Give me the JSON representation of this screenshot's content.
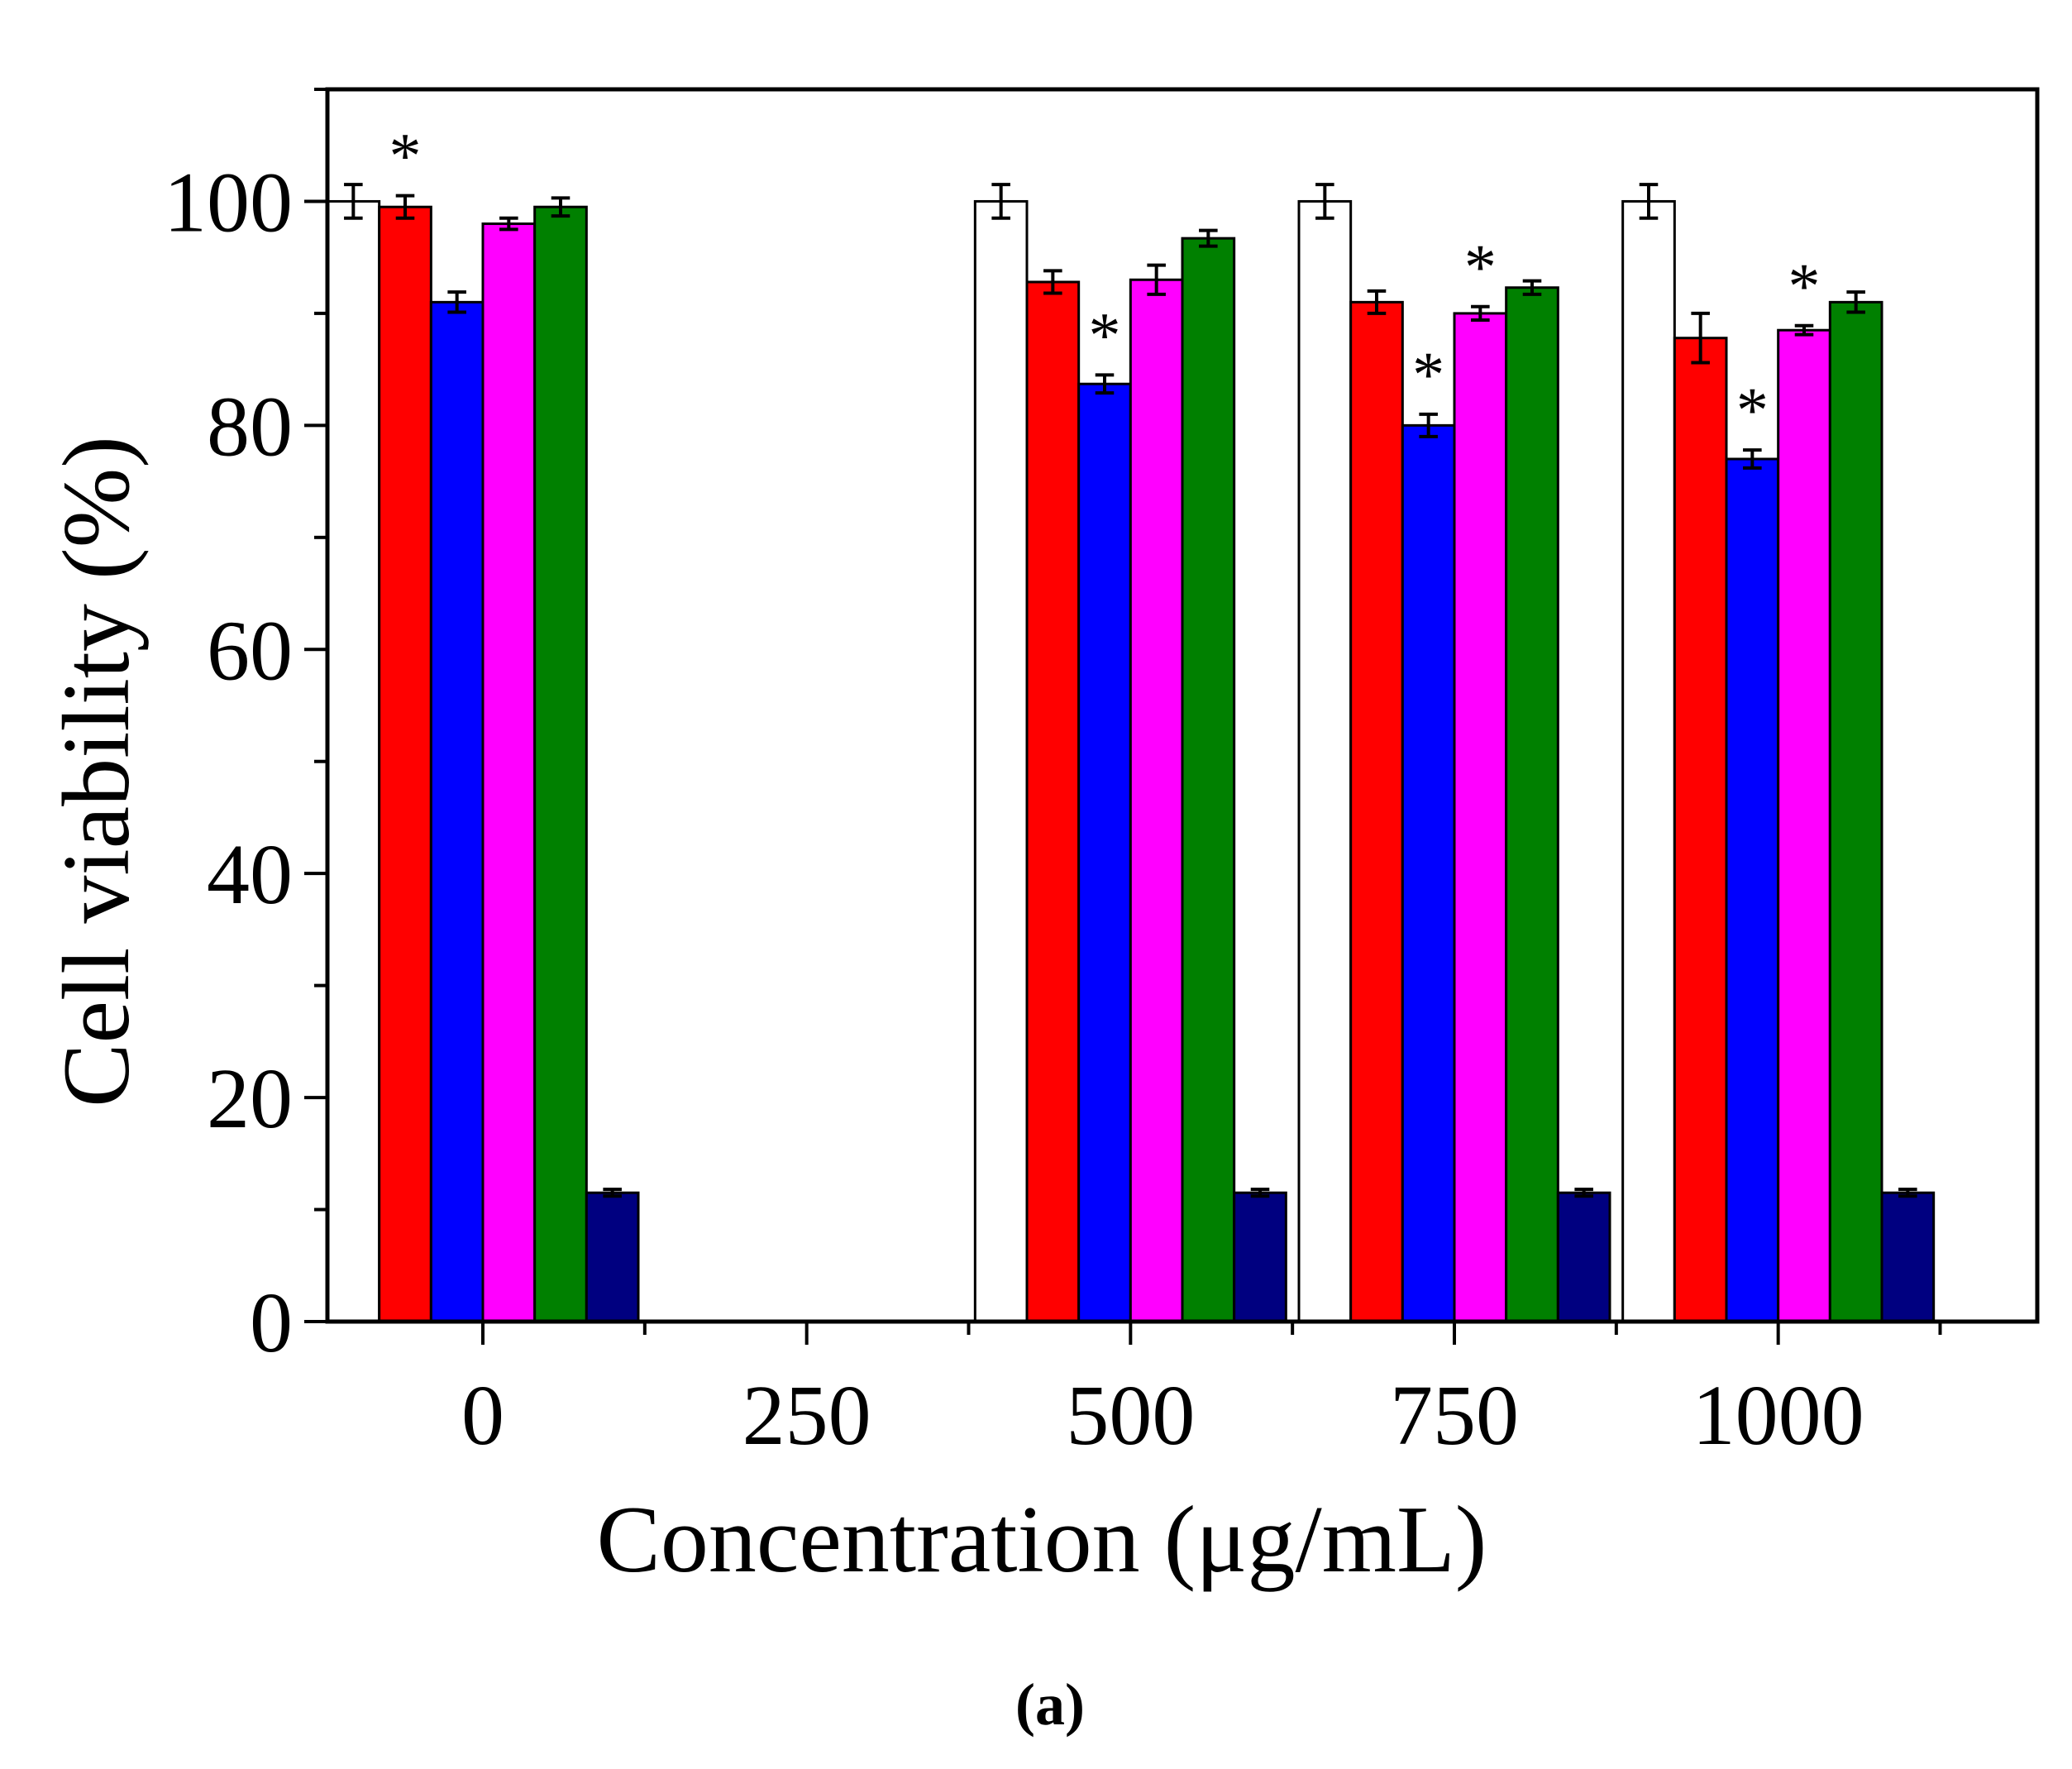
{
  "chart_data": {
    "type": "bar",
    "xlabel": "Concentration (μg/mL)",
    "ylabel": "Cell viability (%)",
    "ylim": [
      0,
      110
    ],
    "yticks": [
      0,
      20,
      40,
      60,
      80,
      100
    ],
    "xlim": [
      -120,
      1200
    ],
    "xticks": [
      0,
      250,
      500,
      750,
      1000
    ],
    "caption": "(a)",
    "grid": false,
    "legend": "none",
    "group_width": 240,
    "groups": [
      {
        "x": 0,
        "has_data": true
      },
      {
        "x": 250,
        "has_data": false
      },
      {
        "x": 500,
        "has_data": true
      },
      {
        "x": 750,
        "has_data": true
      },
      {
        "x": 1000,
        "has_data": true
      }
    ],
    "series": [
      {
        "color": "#ffffff",
        "values": [
          100,
          null,
          100,
          100,
          100
        ],
        "errors": [
          1.5,
          null,
          1.5,
          1.5,
          1.5
        ],
        "stars": [
          false,
          false,
          false,
          false,
          false
        ]
      },
      {
        "color": "#ff0000",
        "values": [
          99.5,
          null,
          92.8,
          91.0,
          87.8
        ],
        "errors": [
          1.0,
          null,
          1.0,
          1.0,
          2.2
        ],
        "stars": [
          true,
          false,
          false,
          false,
          false
        ]
      },
      {
        "color": "#0000ff",
        "values": [
          91.0,
          null,
          83.7,
          80.0,
          77.0
        ],
        "errors": [
          0.9,
          null,
          0.8,
          1.0,
          0.8
        ],
        "stars": [
          false,
          false,
          true,
          true,
          true
        ]
      },
      {
        "color": "#ff00ff",
        "values": [
          98.0,
          null,
          93.0,
          90.0,
          88.5
        ],
        "errors": [
          0.5,
          null,
          1.3,
          0.6,
          0.4
        ],
        "stars": [
          false,
          false,
          false,
          true,
          true
        ]
      },
      {
        "color": "#008000",
        "values": [
          99.5,
          null,
          96.7,
          92.3,
          91.0
        ],
        "errors": [
          0.8,
          null,
          0.7,
          0.6,
          0.9
        ],
        "stars": [
          false,
          false,
          false,
          false,
          false
        ]
      },
      {
        "color": "#000080",
        "values": [
          11.5,
          null,
          11.5,
          11.5,
          11.5
        ],
        "errors": [
          0.3,
          null,
          0.3,
          0.3,
          0.3
        ],
        "stars": [
          false,
          false,
          false,
          false,
          false
        ]
      }
    ]
  }
}
